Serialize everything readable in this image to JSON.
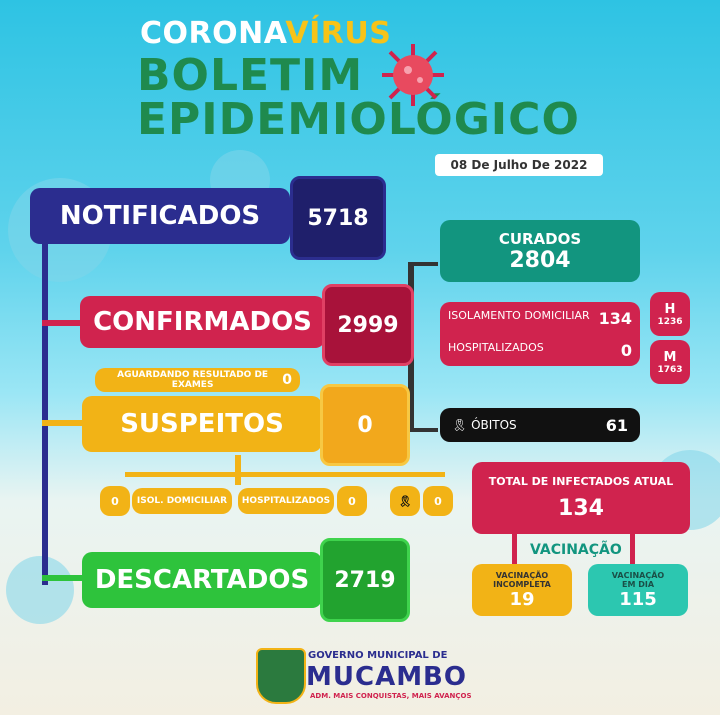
{
  "header": {
    "corona": "CORONA",
    "virus": "VÍRUS",
    "line1": "BOLETIM",
    "line2": "EPIDEMIOLÓGICO",
    "date": "08 De Julho De 2022"
  },
  "notificados": {
    "label": "NOTIFICADOS",
    "value": "5718"
  },
  "confirmados": {
    "label": "CONFIRMADOS",
    "value": "2999"
  },
  "curados": {
    "label": "CURADOS",
    "value": "2804"
  },
  "isolamento": {
    "label": "ISOLAMENTO DOMICILIAR",
    "value": "134"
  },
  "hospitalizados": {
    "label": "HOSPITALIZADOS",
    "value": "0"
  },
  "sexo": {
    "h_label": "H",
    "h_value": "1236",
    "m_label": "M",
    "m_value": "1763"
  },
  "obitos": {
    "label": "ÓBITOS",
    "value": "61"
  },
  "aguardando": {
    "label": "AGUARDANDO RESULTADO DE EXAMES",
    "value": "0"
  },
  "suspeitos": {
    "label": "SUSPEITOS",
    "value": "0",
    "isol_value": "0",
    "isol_label": "ISOL. DOMICILIAR",
    "hosp_label": "HOSPITALIZADOS",
    "hosp_value": "0",
    "obito_value": "0"
  },
  "descartados": {
    "label": "DESCARTADOS",
    "value": "2719"
  },
  "total": {
    "label": "TOTAL DE INFECTADOS ATUAL",
    "value": "134"
  },
  "vacinacao": {
    "title": "VACINAÇÃO",
    "incompleta_label": "VACINAÇÃO INCOMPLETA",
    "incompleta_value": "19",
    "emdia_label": "VACINAÇÃO EM DIA",
    "emdia_value": "115"
  },
  "footer": {
    "line1": "GOVERNO MUNICIPAL DE",
    "line2": "MUCAMBO",
    "line3": "ADM. MAIS CONQUISTAS, MAIS AVANÇOS"
  },
  "colors": {
    "navy": "#2b2d8f",
    "red": "#d0234e",
    "orange": "#f2b316",
    "green": "#2ec33c",
    "teal": "#12957f",
    "black": "#111111"
  }
}
